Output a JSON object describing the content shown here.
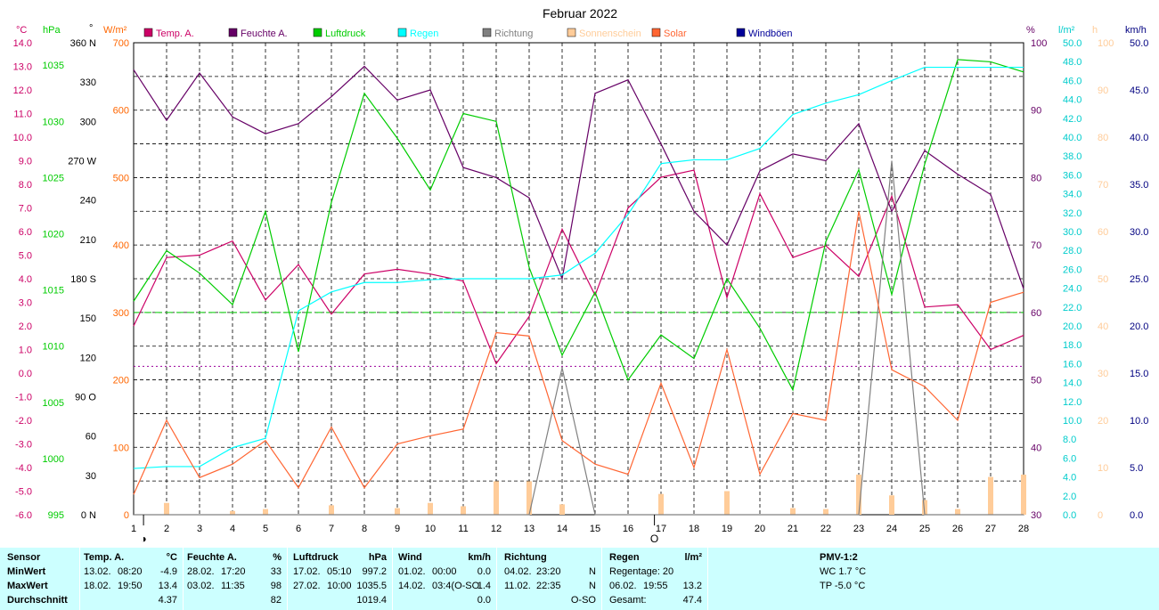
{
  "chart_data": {
    "type": "line",
    "title": "Februar 2022",
    "x": [
      1,
      2,
      3,
      4,
      5,
      6,
      7,
      8,
      9,
      10,
      11,
      12,
      13,
      14,
      15,
      16,
      17,
      18,
      19,
      20,
      21,
      22,
      23,
      24,
      25,
      26,
      27,
      28
    ],
    "xlim": [
      1,
      28
    ],
    "x_tick_labels": [
      "1",
      "2",
      "3",
      "4",
      "5",
      "6",
      "7",
      "8",
      "9",
      "10",
      "11",
      "12",
      "13",
      "14",
      "15",
      "16",
      "17",
      "18",
      "19",
      "20",
      "21",
      "22",
      "23",
      "24",
      "25",
      "26",
      "27",
      "28"
    ],
    "axes": {
      "temp": {
        "unit": "°C",
        "range": [
          -6,
          14
        ],
        "ticks": [
          "14.0",
          "13.0",
          "12.0",
          "11.0",
          "10.0",
          "9.0",
          "8.0",
          "7.0",
          "6.0",
          "5.0",
          "4.0",
          "3.0",
          "2.0",
          "1.0",
          "0.0",
          "-1.0",
          "-2.0",
          "-3.0",
          "-4.0",
          "-5.0",
          "-6.0"
        ],
        "color": "#cc0066"
      },
      "pressure": {
        "unit": "hPa",
        "range": [
          995,
          1037
        ],
        "ticks": [
          "1035",
          "1030",
          "1025",
          "1020",
          "1015",
          "1010",
          "1005",
          "1000",
          "995"
        ],
        "color": "#00cc00"
      },
      "direction": {
        "unit": "°",
        "range": [
          0,
          360
        ],
        "ticks": [
          "360 N",
          "330",
          "300",
          "270 W",
          "240",
          "210",
          "180 S",
          "150",
          "120",
          "90 O",
          "60",
          "30",
          "0 N"
        ],
        "color": "#000000"
      },
      "solar": {
        "unit": "W/m²",
        "range": [
          0,
          700
        ],
        "ticks": [
          "700",
          "600",
          "500",
          "400",
          "300",
          "200",
          "100",
          "0"
        ],
        "color": "#ff6600"
      },
      "humidity": {
        "unit": "%",
        "range": [
          30,
          100
        ],
        "ticks": [
          "100",
          "90",
          "80",
          "70",
          "60",
          "50",
          "40",
          "30"
        ],
        "color": "#660066"
      },
      "rain": {
        "unit": "l/m²",
        "range": [
          0,
          50
        ],
        "ticks": [
          "50.0",
          "48.0",
          "46.0",
          "44.0",
          "42.0",
          "40.0",
          "38.0",
          "36.0",
          "34.0",
          "32.0",
          "30.0",
          "28.0",
          "26.0",
          "24.0",
          "22.0",
          "20.0",
          "18.0",
          "16.0",
          "14.0",
          "12.0",
          "10.0",
          "8.0",
          "6.0",
          "4.0",
          "2.0",
          "0.0"
        ],
        "color": "#00cccc"
      },
      "sunshine": {
        "unit": "h",
        "range": [
          0,
          100
        ],
        "ticks": [
          "100",
          "90",
          "80",
          "70",
          "60",
          "50",
          "40",
          "30",
          "20",
          "10",
          "0"
        ],
        "color": "#ffcc99"
      },
      "wind": {
        "unit": "km/h",
        "range": [
          0,
          50
        ],
        "ticks": [
          "50.0",
          "45.0",
          "40.0",
          "35.0",
          "30.0",
          "25.0",
          "20.0",
          "15.0",
          "10.0",
          "5.0",
          "0.0"
        ],
        "color": "#000080"
      }
    },
    "legend": [
      {
        "name": "Temp. A.",
        "color": "#cc0066"
      },
      {
        "name": "Feuchte A.",
        "color": "#660066"
      },
      {
        "name": "Luftdruck",
        "color": "#00cc00"
      },
      {
        "name": "Regen",
        "color": "#00ffff"
      },
      {
        "name": "Richtung",
        "color": "#808080"
      },
      {
        "name": "Sonnenschein",
        "color": "#ffcc99"
      },
      {
        "name": "Solar",
        "color": "#ff6633"
      },
      {
        "name": "Windböen",
        "color": "#000099"
      }
    ],
    "legend_placement": "top",
    "grid": true,
    "series": [
      {
        "name": "Temp. A.",
        "axis": "temp",
        "color": "#cc0066",
        "values": [
          2.0,
          4.9,
          5.0,
          5.6,
          3.1,
          4.6,
          2.5,
          4.2,
          4.4,
          4.2,
          3.9,
          0.4,
          2.4,
          6.1,
          3.3,
          7.0,
          8.3,
          8.6,
          3.2,
          7.6,
          4.9,
          5.4,
          4.1,
          7.5,
          2.8,
          2.9,
          1.0,
          1.6
        ]
      },
      {
        "name": "Feuchte A.",
        "axis": "humidity",
        "color": "#660066",
        "values": [
          96.0,
          88.5,
          95.5,
          89.0,
          86.5,
          88.0,
          92.0,
          96.5,
          91.5,
          93.0,
          81.5,
          80.0,
          77.0,
          65.0,
          92.5,
          94.5,
          85.0,
          75.0,
          70.0,
          81.0,
          83.5,
          82.5,
          88.0,
          75.0,
          84.0,
          80.5,
          77.5,
          63.5
        ]
      },
      {
        "name": "Luftdruck",
        "axis": "pressure",
        "color": "#00cc00",
        "values": [
          1014.0,
          1018.5,
          1016.5,
          1013.7,
          1022.0,
          1009.5,
          1022.8,
          1032.5,
          1028.5,
          1023.9,
          1030.7,
          1030.0,
          1017.0,
          1009.2,
          1014.8,
          1007.0,
          1011.0,
          1008.9,
          1016.0,
          1011.6,
          1006.1,
          1019.3,
          1025.7,
          1014.6,
          1026.2,
          1035.5,
          1035.3,
          1034.4
        ]
      },
      {
        "name": "Regen",
        "axis": "rain",
        "color": "#00ffff",
        "values": [
          4.9,
          5.1,
          5.1,
          7.1,
          8.1,
          21.6,
          23.6,
          24.6,
          24.6,
          24.9,
          25.0,
          25.0,
          25.0,
          25.4,
          27.7,
          31.8,
          37.2,
          37.6,
          37.6,
          38.8,
          42.4,
          43.6,
          44.5,
          46.0,
          47.4,
          47.4,
          47.4,
          47.4
        ]
      },
      {
        "name": "Richtung",
        "axis": "direction",
        "color": "#808080",
        "values": [
          0,
          0,
          0,
          0,
          0,
          0,
          0,
          0,
          0,
          0,
          0,
          0,
          0,
          112,
          0,
          0,
          0,
          0,
          0,
          0,
          0,
          0,
          0,
          270,
          0,
          0,
          0,
          0
        ]
      },
      {
        "name": "Sonnenschein",
        "axis": "sunshine",
        "type": "bar",
        "color": "#ffcc99",
        "values": [
          0,
          2.5,
          0,
          0.8,
          1.2,
          0,
          2,
          0,
          1.4,
          2.5,
          1.8,
          7.1,
          7.1,
          2.2,
          0,
          0,
          4.4,
          0,
          5.0,
          0,
          1.4,
          1.2,
          8.5,
          4.1,
          3.1,
          1.2,
          8.0,
          8.5
        ]
      },
      {
        "name": "Solar",
        "axis": "solar",
        "color": "#ff6633",
        "values": [
          30,
          140,
          55,
          75,
          110,
          40,
          130,
          40,
          105,
          117,
          127,
          270,
          265,
          110,
          75,
          60,
          195,
          70,
          245,
          60,
          150,
          140,
          450,
          215,
          190,
          140,
          315,
          330
        ]
      },
      {
        "name": "Windböen",
        "axis": "wind",
        "color": "#000099",
        "values": [
          0,
          0,
          0,
          0,
          0,
          0,
          0,
          0,
          0,
          0,
          0,
          0,
          0,
          0,
          0,
          0,
          0,
          0,
          0,
          0,
          0,
          0,
          0,
          0,
          0,
          0,
          0,
          0
        ]
      }
    ],
    "reference_lines": [
      {
        "axis": "humidity",
        "value": 60,
        "color": "#00cc00",
        "style": "dashed"
      },
      {
        "axis": "humidity",
        "value": 52,
        "color": "#990099",
        "style": "dotted"
      }
    ],
    "moon_markers": [
      {
        "day": 1.3,
        "symbol": "◑"
      },
      {
        "day": 16.8,
        "symbol": "O"
      }
    ]
  },
  "stats": {
    "sensor_col": {
      "header": "Sensor",
      "rows": [
        "MinWert",
        "MaxWert",
        "Durchschnitt"
      ]
    },
    "temp": {
      "title": "Temp. A.",
      "unit": "°C",
      "rows": [
        [
          "13.02.",
          "08:20",
          "-4.9"
        ],
        [
          "18.02.",
          "19:50",
          "13.4"
        ],
        [
          "",
          "",
          "4.37"
        ]
      ]
    },
    "feuchte": {
      "title": "Feuchte A.",
      "unit": "%",
      "rows": [
        [
          "28.02.",
          "17:20",
          "33"
        ],
        [
          "03.02.",
          "11:35",
          "98"
        ],
        [
          "",
          "",
          "82"
        ]
      ]
    },
    "luftdruck": {
      "title": "Luftdruck",
      "unit": "hPa",
      "rows": [
        [
          "17.02.",
          "05:10",
          "997.2"
        ],
        [
          "27.02.",
          "10:00",
          "1035.5"
        ],
        [
          "",
          "",
          "1019.4"
        ]
      ]
    },
    "wind": {
      "title": "Wind",
      "unit": "km/h",
      "rows": [
        [
          "01.02.",
          "00:00",
          "0.0"
        ],
        [
          "14.02.",
          "03:4(O-SO",
          "1.4"
        ],
        [
          "",
          "",
          "0.0"
        ]
      ]
    },
    "richtung": {
      "title": "Richtung",
      "rows": [
        [
          "04.02.",
          "23:20",
          "N"
        ],
        [
          "11.02.",
          "22:35",
          "N"
        ],
        [
          "",
          "",
          "O-SO"
        ]
      ]
    },
    "regen": {
      "title": "Regen",
      "unit": "l/m²",
      "rows": [
        [
          "Regentage: 20",
          ""
        ],
        [
          "06.02.",
          "19:55",
          "13.2"
        ],
        [
          "Gesamt:",
          "47.4"
        ]
      ]
    },
    "pmv": {
      "title": "PMV-1:2",
      "lines": [
        "WC 1.7 °C",
        "TP -5.0 °C"
      ]
    }
  }
}
